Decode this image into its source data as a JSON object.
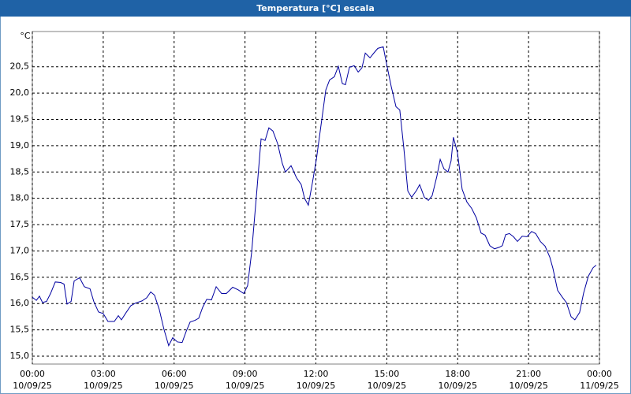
{
  "chart_data": {
    "type": "line",
    "title": "Temperatura [°C] escala",
    "ylabel": "°C",
    "x": [
      0.0,
      0.17,
      0.3,
      0.43,
      0.6,
      0.77,
      0.97,
      1.2,
      1.34,
      1.47,
      1.64,
      1.77,
      2.0,
      2.2,
      2.44,
      2.6,
      2.8,
      3.0,
      3.2,
      3.47,
      3.64,
      3.77,
      3.97,
      4.17,
      4.37,
      4.64,
      4.84,
      5.01,
      5.17,
      5.37,
      5.57,
      5.77,
      5.94,
      6.14,
      6.34,
      6.51,
      6.68,
      6.88,
      7.04,
      7.21,
      7.38,
      7.58,
      7.78,
      8.01,
      8.21,
      8.48,
      8.71,
      8.95,
      9.11,
      9.28,
      9.48,
      9.68,
      9.85,
      10.01,
      10.18,
      10.38,
      10.58,
      10.71,
      10.95,
      11.18,
      11.38,
      11.52,
      11.68,
      11.85,
      12.02,
      12.25,
      12.42,
      12.58,
      12.78,
      12.95,
      13.12,
      13.25,
      13.42,
      13.62,
      13.79,
      13.95,
      14.09,
      14.29,
      14.45,
      14.62,
      14.85,
      15.02,
      15.19,
      15.39,
      15.55,
      15.72,
      15.89,
      16.05,
      16.26,
      16.39,
      16.59,
      16.76,
      16.92,
      17.12,
      17.26,
      17.42,
      17.59,
      17.72,
      17.82,
      17.99,
      18.19,
      18.39,
      18.59,
      18.79,
      18.99,
      19.16,
      19.36,
      19.56,
      19.76,
      19.89,
      20.03,
      20.19,
      20.36,
      20.53,
      20.73,
      20.93,
      21.13,
      21.3,
      21.5,
      21.7,
      21.9,
      22.03,
      22.23,
      22.43,
      22.6,
      22.8,
      22.96,
      23.16,
      23.33,
      23.53,
      23.73,
      23.86
    ],
    "series": [
      {
        "name": "Temperatura",
        "color": "#0000a0",
        "values": [
          16.12,
          16.06,
          16.14,
          16.02,
          16.04,
          16.19,
          16.41,
          16.4,
          16.37,
          15.99,
          16.04,
          16.43,
          16.49,
          16.32,
          16.28,
          16.04,
          15.84,
          15.81,
          15.66,
          15.66,
          15.77,
          15.69,
          15.83,
          15.96,
          16.01,
          16.05,
          16.11,
          16.22,
          16.16,
          15.89,
          15.51,
          15.2,
          15.35,
          15.27,
          15.26,
          15.47,
          15.65,
          15.68,
          15.72,
          15.93,
          16.08,
          16.07,
          16.32,
          16.19,
          16.19,
          16.31,
          16.26,
          16.19,
          16.34,
          16.97,
          18.03,
          19.13,
          19.1,
          19.34,
          19.28,
          19.04,
          18.66,
          18.5,
          18.62,
          18.39,
          18.26,
          18.0,
          17.87,
          18.29,
          18.74,
          19.5,
          20.06,
          20.25,
          20.31,
          20.51,
          20.18,
          20.16,
          20.49,
          20.52,
          20.4,
          20.48,
          20.76,
          20.67,
          20.76,
          20.85,
          20.88,
          20.49,
          20.12,
          19.74,
          19.68,
          18.96,
          18.14,
          18.02,
          18.15,
          18.26,
          18.02,
          17.96,
          18.05,
          18.42,
          18.74,
          18.56,
          18.5,
          18.71,
          19.16,
          18.87,
          18.17,
          17.93,
          17.81,
          17.63,
          17.34,
          17.3,
          17.1,
          17.04,
          17.07,
          17.1,
          17.31,
          17.33,
          17.27,
          17.18,
          17.28,
          17.27,
          17.37,
          17.33,
          17.18,
          17.09,
          16.88,
          16.67,
          16.25,
          16.12,
          16.02,
          15.75,
          15.69,
          15.83,
          16.2,
          16.52,
          16.68,
          16.73
        ]
      }
    ],
    "xlim": [
      0,
      24
    ],
    "xticks": [
      {
        "value": 0,
        "label": "00:00",
        "date": "10/09/25"
      },
      {
        "value": 3,
        "label": "03:00",
        "date": "10/09/25"
      },
      {
        "value": 6,
        "label": "06:00",
        "date": "10/09/25"
      },
      {
        "value": 9,
        "label": "09:00",
        "date": "10/09/25"
      },
      {
        "value": 12,
        "label": "12:00",
        "date": "10/09/25"
      },
      {
        "value": 15,
        "label": "15:00",
        "date": "10/09/25"
      },
      {
        "value": 18,
        "label": "18:00",
        "date": "10/09/25"
      },
      {
        "value": 21,
        "label": "21:00",
        "date": "10/09/25"
      },
      {
        "value": 24,
        "label": "00:00",
        "date": "11/09/25"
      }
    ],
    "ylim": [
      14.85,
      21.17
    ],
    "yticks": [
      {
        "value": 15,
        "label": "15,0"
      },
      {
        "value": 15.5,
        "label": "15,5"
      },
      {
        "value": 16,
        "label": "16,0"
      },
      {
        "value": 16.5,
        "label": "16,5"
      },
      {
        "value": 17,
        "label": "17,0"
      },
      {
        "value": 17.5,
        "label": "17,5"
      },
      {
        "value": 18,
        "label": "18,0"
      },
      {
        "value": 18.5,
        "label": "18,5"
      },
      {
        "value": 19,
        "label": "19,0"
      },
      {
        "value": 19.5,
        "label": "19,5"
      },
      {
        "value": 20,
        "label": "20,0"
      },
      {
        "value": 20.5,
        "label": "20,5"
      }
    ],
    "grid": true
  }
}
